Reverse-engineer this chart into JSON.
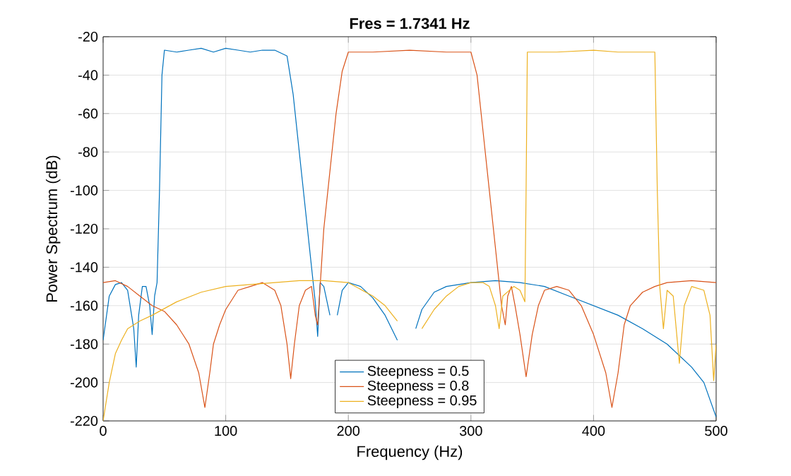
{
  "chart_data": {
    "type": "line",
    "title": "Fres = 1.7341 Hz",
    "xlabel": "Frequency (Hz)",
    "ylabel": "Power Spectrum (dB)",
    "xlim": [
      0,
      500
    ],
    "ylim": [
      -220,
      -20
    ],
    "xticks": [
      0,
      100,
      200,
      300,
      400,
      500
    ],
    "yticks": [
      -220,
      -200,
      -180,
      -160,
      -140,
      -120,
      -100,
      -80,
      -60,
      -40,
      -20
    ],
    "grid": true,
    "legend": "bottom",
    "marker": "none",
    "line_style": "solid",
    "series": [
      {
        "name": "Steepness = 0.5",
        "color": "#0072bd",
        "x": [
          0,
          5,
          10,
          15,
          20,
          25,
          27,
          29,
          32,
          35,
          38,
          40,
          42,
          44,
          46,
          48,
          50,
          60,
          70,
          80,
          90,
          100,
          110,
          120,
          130,
          140,
          150,
          155,
          160,
          165,
          170,
          173,
          175,
          177,
          180,
          185,
          188,
          191,
          195,
          200,
          210,
          220,
          230,
          240,
          245,
          250,
          255,
          260,
          270,
          280,
          300,
          320,
          340,
          360,
          380,
          400,
          420,
          440,
          460,
          480,
          490,
          500
        ],
        "values": [
          -178,
          -155,
          -149,
          -148,
          -152,
          -172,
          -192,
          -165,
          -150,
          -150,
          -160,
          -175,
          -155,
          -148,
          -100,
          -40,
          -27,
          -28,
          -27,
          -26,
          -28,
          -26,
          -27,
          -28,
          -27,
          -27,
          -30,
          -50,
          -80,
          -110,
          -140,
          -158,
          -176,
          -148,
          -150,
          -165,
          null,
          -165,
          -152,
          -148,
          -150,
          -156,
          -165,
          -178,
          null,
          null,
          -172,
          -162,
          -153,
          -150,
          -148,
          -147,
          -148,
          -150,
          -155,
          -160,
          -165,
          -172,
          -180,
          -192,
          -200,
          -218
        ]
      },
      {
        "name": "Steepness = 0.8",
        "color": "#d95319",
        "x": [
          0,
          10,
          20,
          30,
          40,
          50,
          60,
          70,
          78,
          83,
          87,
          90,
          95,
          100,
          110,
          120,
          130,
          140,
          145,
          150,
          153,
          156,
          160,
          165,
          170,
          173,
          175,
          178,
          180,
          185,
          190,
          195,
          200,
          220,
          250,
          280,
          300,
          305,
          310,
          315,
          320,
          325,
          328,
          330,
          333,
          336,
          340,
          345,
          350,
          355,
          360,
          370,
          380,
          390,
          400,
          410,
          415,
          420,
          425,
          430,
          440,
          450,
          460,
          480,
          500
        ],
        "values": [
          -148,
          -147,
          -150,
          -155,
          -160,
          -163,
          -170,
          -180,
          -195,
          -213,
          -195,
          -180,
          -170,
          -162,
          -152,
          -150,
          -148,
          -152,
          -160,
          -180,
          -198,
          -180,
          -160,
          -152,
          -150,
          -165,
          -170,
          -140,
          -120,
          -90,
          -60,
          -38,
          -28,
          -28,
          -27,
          -28,
          -28,
          -40,
          -70,
          -100,
          -130,
          -160,
          -170,
          -155,
          -150,
          -160,
          -175,
          -197,
          -175,
          -160,
          -152,
          -150,
          -152,
          -160,
          -175,
          -195,
          -213,
          -195,
          -170,
          -160,
          -153,
          -150,
          -148,
          -147,
          -148
        ]
      },
      {
        "name": "Steepness = 0.95",
        "color": "#edb120",
        "x": [
          0,
          5,
          10,
          15,
          20,
          30,
          40,
          60,
          80,
          100,
          120,
          140,
          160,
          180,
          200,
          220,
          230,
          240,
          250,
          260,
          270,
          280,
          290,
          300,
          310,
          315,
          320,
          323,
          326,
          335,
          340,
          344,
          345,
          346,
          370,
          400,
          420,
          450,
          452,
          454,
          457,
          460,
          465,
          470,
          474,
          480,
          490,
          495,
          498,
          500
        ],
        "values": [
          -220,
          -200,
          -185,
          -178,
          -172,
          -168,
          -165,
          -158,
          -153,
          -150,
          -149,
          -148,
          -147,
          -147,
          -148,
          -155,
          -160,
          -168,
          null,
          -172,
          -162,
          -155,
          -150,
          -148,
          -148,
          -150,
          -160,
          -172,
          -155,
          -150,
          -152,
          -158,
          -100,
          -28,
          -28,
          -27,
          -28,
          -28,
          -100,
          -150,
          -172,
          -152,
          -155,
          -190,
          -160,
          -150,
          -152,
          -165,
          -199,
          -180
        ]
      }
    ]
  }
}
